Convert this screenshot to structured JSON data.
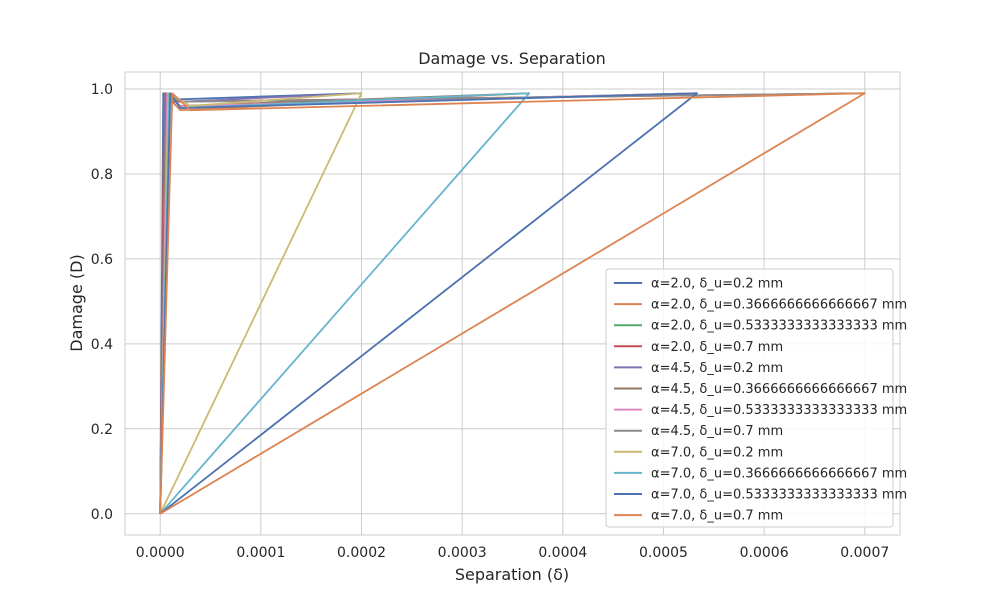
{
  "chart_data": {
    "type": "line",
    "title": "Damage vs. Separation",
    "xlabel": "Separation (δ)",
    "ylabel": "Damage (D)",
    "xlim": [
      -3.5e-05,
      0.000735
    ],
    "ylim": [
      -0.05,
      1.04
    ],
    "x_ticks": [
      0.0,
      0.0001,
      0.0002,
      0.0003,
      0.0004,
      0.0005,
      0.0006,
      0.0007
    ],
    "x_tick_labels": [
      "0.0000",
      "0.0001",
      "0.0002",
      "0.0003",
      "0.0004",
      "0.0005",
      "0.0006",
      "0.0007"
    ],
    "y_ticks": [
      0.0,
      0.2,
      0.4,
      0.6,
      0.8,
      1.0
    ],
    "y_tick_labels": [
      "0.0",
      "0.2",
      "0.4",
      "0.6",
      "0.8",
      "1.0"
    ],
    "grid": true,
    "legend_position": "lower-right",
    "series": [
      {
        "name": "α=2.0, δ_u=0.2 mm",
        "color": "#4c72b0",
        "x": [
          0,
          3e-06,
          1e-05,
          0.0002
        ],
        "y": [
          0,
          0.99,
          0.975,
          0.99
        ]
      },
      {
        "name": "α=2.0, δ_u=0.3666666666666667 mm",
        "color": "#dd8452",
        "x": [
          0,
          4e-06,
          2e-05,
          0.00036667
        ],
        "y": [
          0,
          0.99,
          0.95,
          0.99
        ]
      },
      {
        "name": "α=2.0, δ_u=0.5333333333333333 mm",
        "color": "#55a868",
        "x": [
          0,
          4e-06,
          2e-05,
          0.00053333
        ],
        "y": [
          0,
          0.99,
          0.96,
          0.99
        ]
      },
      {
        "name": "α=2.0, δ_u=0.7 mm",
        "color": "#c44e52",
        "x": [
          0,
          4e-06,
          1e-05,
          0.0007
        ],
        "y": [
          0,
          0.99,
          0.97,
          0.99
        ]
      },
      {
        "name": "α=4.5, δ_u=0.2 mm",
        "color": "#8172b3",
        "x": [
          0,
          5e-06,
          2e-05,
          0.0002
        ],
        "y": [
          0,
          0.99,
          0.97,
          0.99
        ]
      },
      {
        "name": "α=4.5, δ_u=0.3666666666666667 mm",
        "color": "#937860",
        "x": [
          0,
          6e-06,
          2e-05,
          0.00036667
        ],
        "y": [
          0,
          0.99,
          0.96,
          0.99
        ]
      },
      {
        "name": "α=4.5, δ_u=0.5333333333333333 mm",
        "color": "#da8bc3",
        "x": [
          0,
          7e-06,
          2e-05,
          0.00053333
        ],
        "y": [
          0,
          0.99,
          0.96,
          0.99
        ]
      },
      {
        "name": "α=4.5, δ_u=0.7 mm",
        "color": "#8c8c8c",
        "x": [
          0,
          8e-06,
          2e-05,
          0.0007
        ],
        "y": [
          0,
          0.99,
          0.97,
          0.99
        ]
      },
      {
        "name": "α=7.0, δ_u=0.2 mm",
        "color": "#ccb974",
        "x": [
          0,
          8e-06,
          3e-05,
          0.0002,
          0.0002,
          0.0
        ],
        "y": [
          0,
          0.99,
          0.96,
          0.99,
          0.99,
          0.0
        ]
      },
      {
        "name": "α=7.0, δ_u=0.3666666666666667 mm",
        "color": "#64b5cd",
        "x": [
          0,
          9e-06,
          2e-05,
          0.00036667,
          0.00036667,
          0.0
        ],
        "y": [
          0,
          0.99,
          0.955,
          0.99,
          0.99,
          0.0
        ]
      },
      {
        "name": "α=7.0, δ_u=0.5333333333333333 mm",
        "color": "#4c72b0",
        "x": [
          0,
          1e-05,
          2e-05,
          0.00053333,
          0.00053333,
          0.0
        ],
        "y": [
          0,
          0.99,
          0.955,
          0.99,
          0.99,
          0.0
        ]
      },
      {
        "name": "α=7.0, δ_u=0.7 mm",
        "color": "#dd8452",
        "x": [
          0,
          1.2e-05,
          3e-05,
          0.0007,
          0.0007,
          0.0
        ],
        "y": [
          0,
          0.99,
          0.95,
          0.99,
          0.99,
          0.0
        ]
      }
    ]
  }
}
